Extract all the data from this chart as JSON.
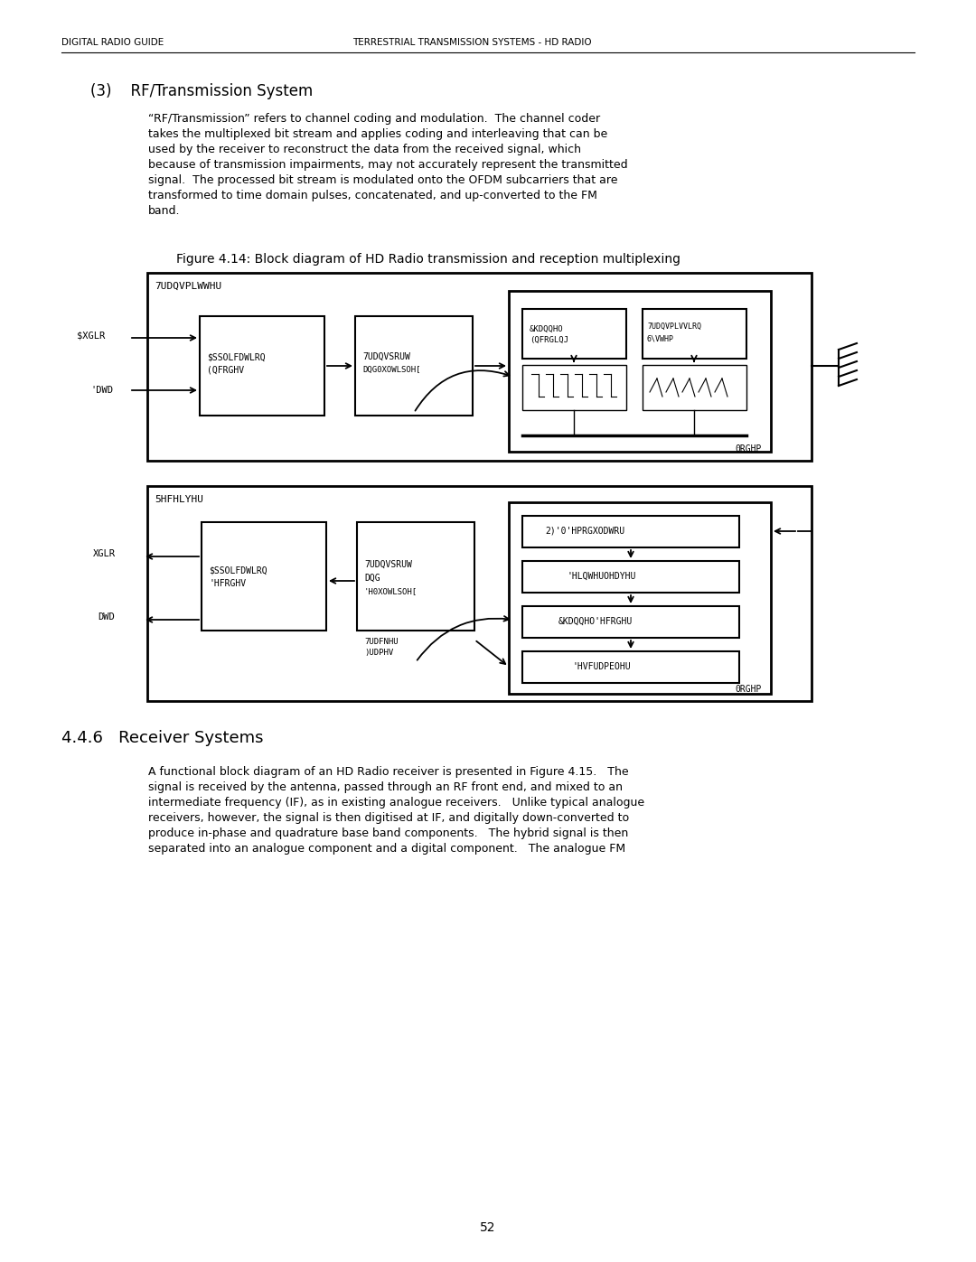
{
  "bg_color": "#ffffff",
  "font_color": "#000000",
  "header_left": "DIGITAL RADIO GUIDE",
  "header_right": "TERRESTRIAL TRANSMISSION SYSTEMS - HD RADIO",
  "section_title": "(3)    RF/Transmission System",
  "body_para1_lines": [
    "“RF/Transmission” refers to channel coding and modulation.  The channel coder",
    "takes the multiplexed bit stream and applies coding and interleaving that can be",
    "used by the receiver to reconstruct the data from the received signal, which",
    "because of transmission impairments, may not accurately represent the transmitted",
    "signal.  The processed bit stream is modulated onto the OFDM subcarriers that are",
    "transformed to time domain pulses, concatenated, and up-converted to the FM",
    "band."
  ],
  "fig_caption": "Figure 4.14: Block diagram of HD Radio transmission and reception multiplexing",
  "section2_title": "4.4.6   Receiver Systems",
  "body_para2_lines": [
    "A functional block diagram of an HD Radio receiver is presented in Figure 4.15.   The",
    "signal is received by the antenna, passed through an RF front end, and mixed to an",
    "intermediate frequency (IF), as in existing analogue receivers.   Unlike typical analogue",
    "receivers, however, the signal is then digitised at IF, and digitally down-converted to",
    "produce in-phase and quadrature base band components.   The hybrid signal is then",
    "separated into an analogue component and a digital component.   The analogue FM"
  ],
  "page_number": "52"
}
